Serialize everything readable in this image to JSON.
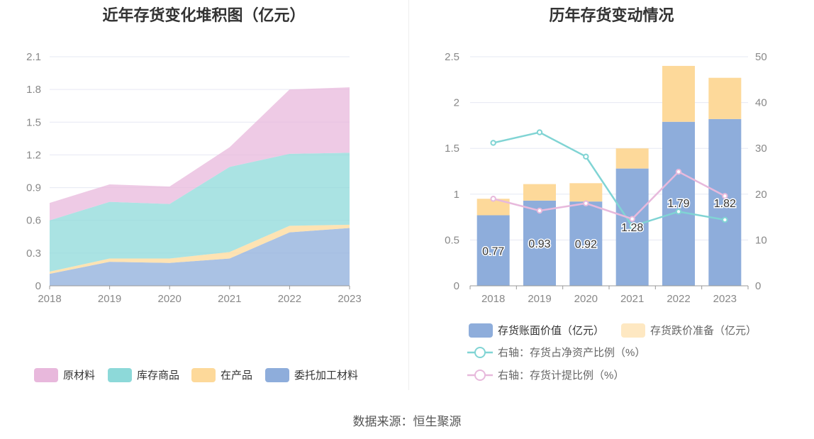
{
  "left_title": "近年存货变化堆积图（亿元）",
  "right_title": "历年存货变动情况",
  "source": "数据来源：恒生聚源",
  "chart_data": [
    {
      "type": "area",
      "stacked": true,
      "title": "近年存货变化堆积图（亿元）",
      "x": [
        "2018",
        "2019",
        "2020",
        "2021",
        "2022",
        "2023"
      ],
      "ylim": [
        0,
        2.1
      ],
      "yticks": [
        "0",
        "0.3",
        "0.6",
        "0.9",
        "1.2",
        "1.5",
        "1.8",
        "2.1"
      ],
      "grid": true,
      "legend_position": "bottom",
      "series": [
        {
          "name": "委托加工材料",
          "color": "#8eaddb",
          "values": [
            0.11,
            0.22,
            0.21,
            0.25,
            0.49,
            0.53
          ]
        },
        {
          "name": "在产品",
          "color": "#fdd99a",
          "values": [
            0.02,
            0.03,
            0.04,
            0.06,
            0.06,
            0.03
          ]
        },
        {
          "name": "库存商品",
          "color": "#8dd9d9",
          "values": [
            0.47,
            0.52,
            0.5,
            0.78,
            0.66,
            0.66
          ]
        },
        {
          "name": "原材料",
          "color": "#e8b8dc",
          "values": [
            0.16,
            0.16,
            0.16,
            0.18,
            0.59,
            0.6
          ]
        }
      ]
    },
    {
      "type": "bar",
      "stacked": true,
      "title": "历年存货变动情况",
      "categories": [
        "2018",
        "2019",
        "2020",
        "2021",
        "2022",
        "2023"
      ],
      "ylim": [
        0,
        2.5
      ],
      "yticks": [
        "0",
        "0.5",
        "1",
        "1.5",
        "2",
        "2.5"
      ],
      "y2lim": [
        0,
        50
      ],
      "y2ticks": [
        "0",
        "10",
        "20",
        "30",
        "40",
        "50"
      ],
      "grid": true,
      "legend_position": "bottom",
      "series": [
        {
          "name": "存货账面价值（亿元）",
          "type": "bar",
          "color": "#8eaddb",
          "values": [
            0.77,
            0.93,
            0.92,
            1.28,
            1.79,
            1.82
          ],
          "labels": [
            "0.77",
            "0.93",
            "0.92",
            "1.28",
            "1.79",
            "1.82"
          ]
        },
        {
          "name": "存货跌价准备（亿元）",
          "type": "bar",
          "color": "#fdd99a",
          "values": [
            0.18,
            0.18,
            0.2,
            0.22,
            0.61,
            0.45
          ]
        },
        {
          "name": "右轴：存货占净资产比例（%）",
          "type": "line",
          "axis": "right",
          "color": "#80d4d4",
          "values": [
            31.2,
            33.5,
            28.2,
            13.0,
            16.2,
            14.4
          ]
        },
        {
          "name": "右轴：存货计提比例（%）",
          "type": "line",
          "axis": "right",
          "color": "#e7b9dc",
          "values": [
            19.0,
            16.4,
            18.0,
            14.6,
            24.9,
            19.6
          ]
        }
      ]
    }
  ]
}
